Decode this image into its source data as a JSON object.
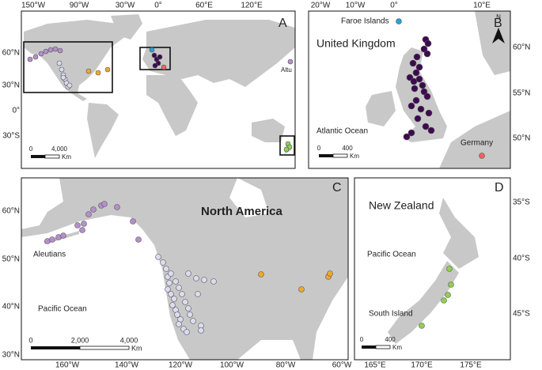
{
  "panels": [
    {
      "letter": "A",
      "lon_ticks": [
        "150°W",
        "90°W",
        "30°W",
        "0°",
        "60°E",
        "120°E"
      ],
      "lat_ticks": [
        "60°N",
        "30°N",
        "0°",
        "30°S"
      ],
      "labels": [
        "Altu"
      ],
      "scale": [
        "0",
        "4,000",
        "Km"
      ]
    },
    {
      "letter": "B",
      "lon_ticks": [
        "20°W",
        "10°W",
        "0°",
        "10°E"
      ],
      "lat_ticks": [
        "60°N",
        "55°N",
        "50°N"
      ],
      "north": "N",
      "labels": [
        "Faroe Islands",
        "United Kingdom",
        "Atlantic Ocean",
        "Germany"
      ],
      "scale": [
        "0",
        "400",
        "Km"
      ]
    },
    {
      "letter": "C",
      "lon_ticks": [
        "160°W",
        "140°W",
        "120°W",
        "100°W",
        "80°W",
        "60°W"
      ],
      "lat_ticks": [
        "60°N",
        "50°N",
        "40°N",
        "30°N"
      ],
      "labels": [
        "North America",
        "Aleutians",
        "Pacific Ocean"
      ],
      "scale": [
        "0",
        "2,000",
        "4,000",
        "Km"
      ]
    },
    {
      "letter": "D",
      "lon_ticks": [
        "165°E",
        "170°E",
        "175°E"
      ],
      "lat_ticks": [
        "35°S",
        "40°S",
        "45°S"
      ],
      "labels": [
        "New Zealand",
        "Pacific Ocean",
        "South Island"
      ],
      "scale": [
        "0",
        "400",
        "Km"
      ]
    }
  ]
}
